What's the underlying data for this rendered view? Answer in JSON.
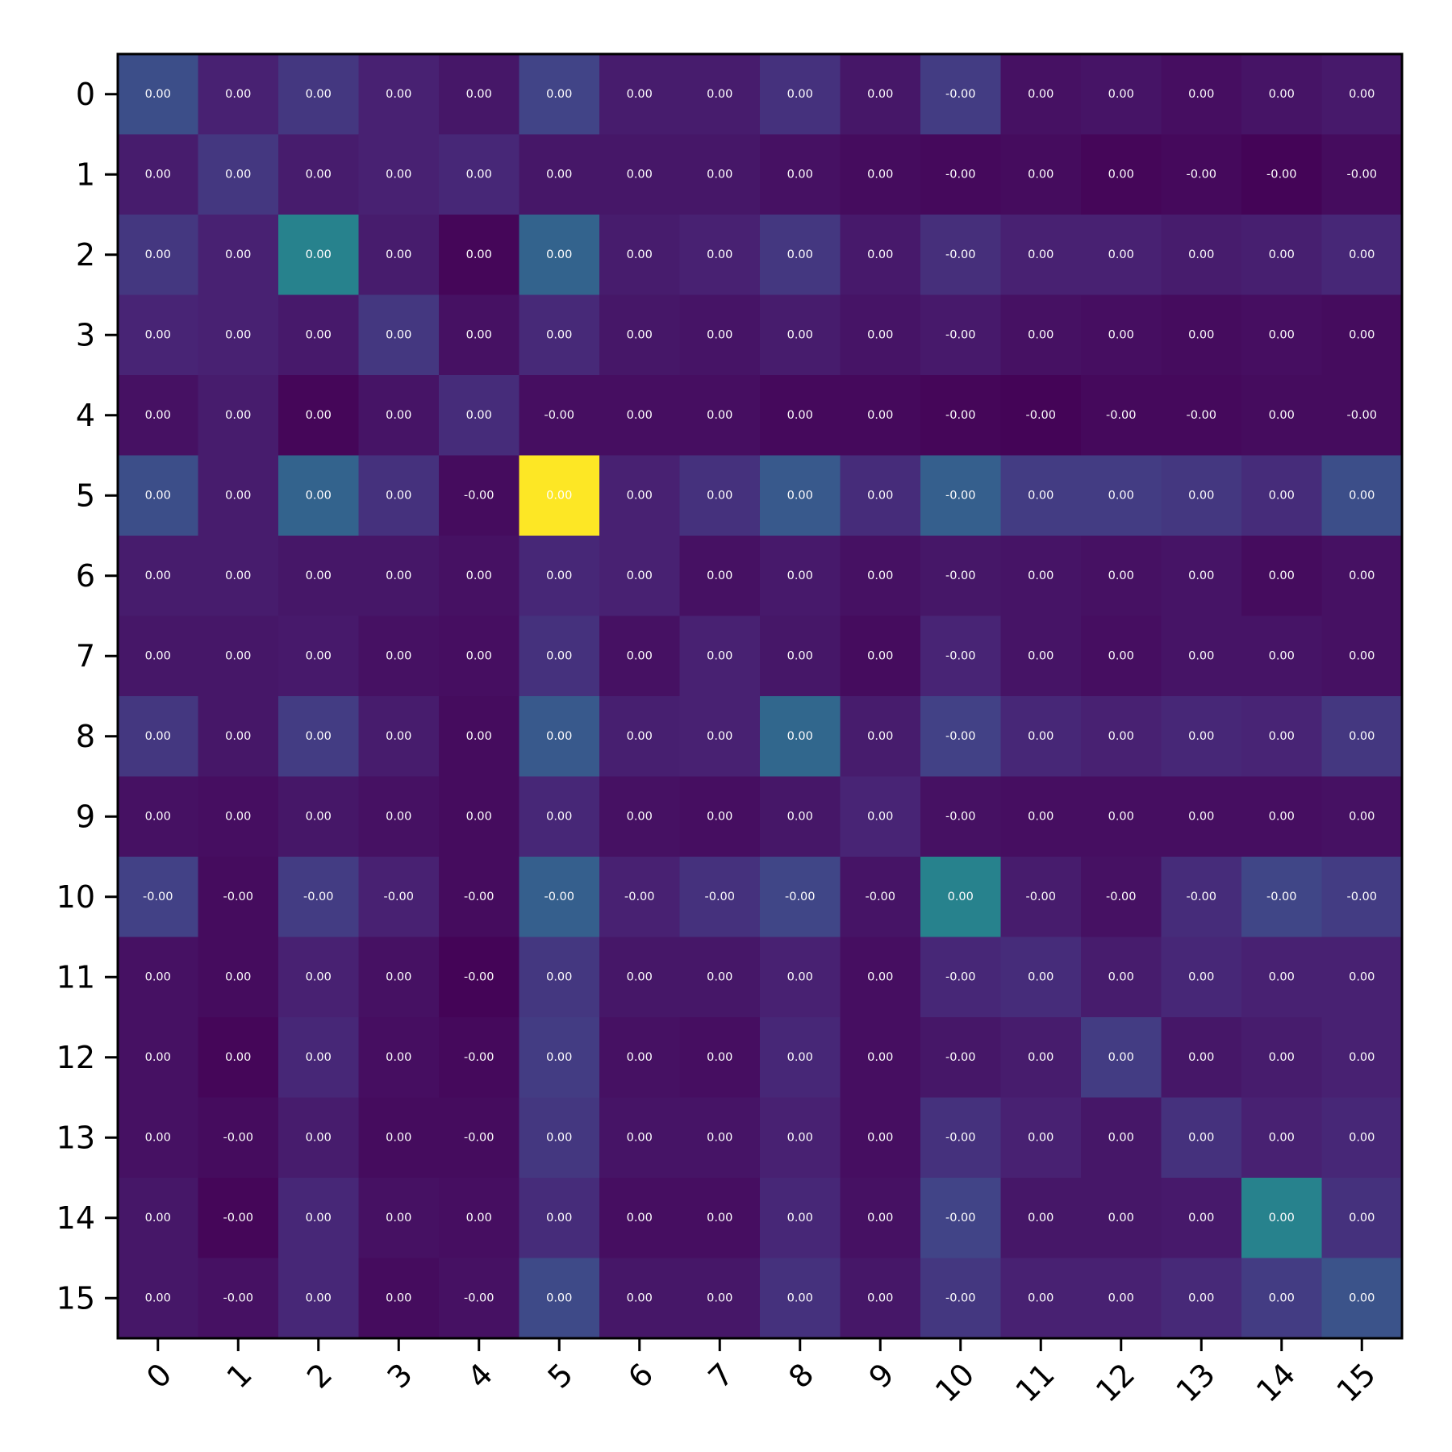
{
  "chart_data": {
    "type": "heatmap",
    "title": "",
    "xlabel": "",
    "ylabel": "",
    "colormap": "viridis",
    "x_ticks": [
      "0",
      "1",
      "2",
      "3",
      "4",
      "5",
      "6",
      "7",
      "8",
      "9",
      "10",
      "11",
      "12",
      "13",
      "14",
      "15"
    ],
    "y_ticks": [
      "0",
      "1",
      "2",
      "3",
      "4",
      "5",
      "6",
      "7",
      "8",
      "9",
      "10",
      "11",
      "12",
      "13",
      "14",
      "15"
    ],
    "x_tick_rotation_deg": 45,
    "intensity_range": [
      0,
      1
    ],
    "intensity": [
      [
        0.3,
        0.12,
        0.2,
        0.12,
        0.08,
        0.25,
        0.1,
        0.1,
        0.18,
        0.08,
        0.22,
        0.06,
        0.07,
        0.05,
        0.07,
        0.09
      ],
      [
        0.1,
        0.2,
        0.1,
        0.12,
        0.14,
        0.08,
        0.08,
        0.08,
        0.06,
        0.04,
        0.03,
        0.04,
        0.02,
        0.03,
        0.01,
        0.04
      ],
      [
        0.2,
        0.12,
        0.55,
        0.1,
        0.02,
        0.4,
        0.1,
        0.12,
        0.2,
        0.09,
        0.17,
        0.12,
        0.12,
        0.1,
        0.11,
        0.14
      ],
      [
        0.13,
        0.12,
        0.09,
        0.2,
        0.06,
        0.15,
        0.08,
        0.07,
        0.1,
        0.07,
        0.09,
        0.06,
        0.05,
        0.04,
        0.05,
        0.04
      ],
      [
        0.06,
        0.1,
        0.02,
        0.07,
        0.16,
        0.05,
        0.05,
        0.05,
        0.03,
        0.03,
        0.02,
        0.01,
        0.03,
        0.03,
        0.04,
        0.04
      ],
      [
        0.3,
        0.1,
        0.4,
        0.18,
        0.04,
        1.0,
        0.12,
        0.18,
        0.35,
        0.16,
        0.38,
        0.22,
        0.22,
        0.2,
        0.16,
        0.3
      ],
      [
        0.1,
        0.1,
        0.08,
        0.08,
        0.06,
        0.14,
        0.12,
        0.06,
        0.09,
        0.06,
        0.08,
        0.07,
        0.06,
        0.07,
        0.04,
        0.06
      ],
      [
        0.08,
        0.08,
        0.09,
        0.06,
        0.05,
        0.18,
        0.06,
        0.12,
        0.08,
        0.04,
        0.13,
        0.07,
        0.05,
        0.07,
        0.07,
        0.06
      ],
      [
        0.2,
        0.08,
        0.22,
        0.1,
        0.04,
        0.35,
        0.11,
        0.12,
        0.42,
        0.1,
        0.24,
        0.14,
        0.12,
        0.14,
        0.13,
        0.2
      ],
      [
        0.06,
        0.05,
        0.08,
        0.06,
        0.04,
        0.14,
        0.06,
        0.05,
        0.08,
        0.13,
        0.06,
        0.05,
        0.05,
        0.05,
        0.05,
        0.06
      ],
      [
        0.24,
        0.04,
        0.22,
        0.12,
        0.04,
        0.38,
        0.12,
        0.18,
        0.26,
        0.07,
        0.55,
        0.1,
        0.06,
        0.16,
        0.26,
        0.22
      ],
      [
        0.06,
        0.04,
        0.12,
        0.06,
        0.01,
        0.2,
        0.08,
        0.08,
        0.12,
        0.05,
        0.14,
        0.16,
        0.1,
        0.14,
        0.12,
        0.12
      ],
      [
        0.06,
        0.02,
        0.14,
        0.05,
        0.03,
        0.22,
        0.06,
        0.05,
        0.14,
        0.05,
        0.08,
        0.1,
        0.22,
        0.08,
        0.1,
        0.12
      ],
      [
        0.06,
        0.04,
        0.1,
        0.04,
        0.04,
        0.2,
        0.07,
        0.07,
        0.12,
        0.05,
        0.18,
        0.12,
        0.08,
        0.18,
        0.12,
        0.14
      ],
      [
        0.08,
        0.02,
        0.14,
        0.06,
        0.05,
        0.16,
        0.05,
        0.05,
        0.14,
        0.06,
        0.25,
        0.08,
        0.08,
        0.09,
        0.55,
        0.18
      ],
      [
        0.08,
        0.06,
        0.14,
        0.04,
        0.06,
        0.28,
        0.08,
        0.08,
        0.18,
        0.08,
        0.2,
        0.12,
        0.12,
        0.15,
        0.22,
        0.32
      ]
    ],
    "cell_labels": [
      [
        "0.00",
        "0.00",
        "0.00",
        "0.00",
        "0.00",
        "0.00",
        "0.00",
        "0.00",
        "0.00",
        "0.00",
        "-0.00",
        "0.00",
        "0.00",
        "0.00",
        "0.00",
        "0.00"
      ],
      [
        "0.00",
        "0.00",
        "0.00",
        "0.00",
        "0.00",
        "0.00",
        "0.00",
        "0.00",
        "0.00",
        "0.00",
        "-0.00",
        "0.00",
        "0.00",
        "-0.00",
        "-0.00",
        "-0.00"
      ],
      [
        "0.00",
        "0.00",
        "0.00",
        "0.00",
        "0.00",
        "0.00",
        "0.00",
        "0.00",
        "0.00",
        "0.00",
        "-0.00",
        "0.00",
        "0.00",
        "0.00",
        "0.00",
        "0.00"
      ],
      [
        "0.00",
        "0.00",
        "0.00",
        "0.00",
        "0.00",
        "0.00",
        "0.00",
        "0.00",
        "0.00",
        "0.00",
        "-0.00",
        "0.00",
        "0.00",
        "0.00",
        "0.00",
        "0.00"
      ],
      [
        "0.00",
        "0.00",
        "0.00",
        "0.00",
        "0.00",
        "-0.00",
        "0.00",
        "0.00",
        "0.00",
        "0.00",
        "-0.00",
        "-0.00",
        "-0.00",
        "-0.00",
        "0.00",
        "-0.00"
      ],
      [
        "0.00",
        "0.00",
        "0.00",
        "0.00",
        "-0.00",
        "0.00",
        "0.00",
        "0.00",
        "0.00",
        "0.00",
        "-0.00",
        "0.00",
        "0.00",
        "0.00",
        "0.00",
        "0.00"
      ],
      [
        "0.00",
        "0.00",
        "0.00",
        "0.00",
        "0.00",
        "0.00",
        "0.00",
        "0.00",
        "0.00",
        "0.00",
        "-0.00",
        "0.00",
        "0.00",
        "0.00",
        "0.00",
        "0.00"
      ],
      [
        "0.00",
        "0.00",
        "0.00",
        "0.00",
        "0.00",
        "0.00",
        "0.00",
        "0.00",
        "0.00",
        "0.00",
        "-0.00",
        "0.00",
        "0.00",
        "0.00",
        "0.00",
        "0.00"
      ],
      [
        "0.00",
        "0.00",
        "0.00",
        "0.00",
        "0.00",
        "0.00",
        "0.00",
        "0.00",
        "0.00",
        "0.00",
        "-0.00",
        "0.00",
        "0.00",
        "0.00",
        "0.00",
        "0.00"
      ],
      [
        "0.00",
        "0.00",
        "0.00",
        "0.00",
        "0.00",
        "0.00",
        "0.00",
        "0.00",
        "0.00",
        "0.00",
        "-0.00",
        "0.00",
        "0.00",
        "0.00",
        "0.00",
        "0.00"
      ],
      [
        "-0.00",
        "-0.00",
        "-0.00",
        "-0.00",
        "-0.00",
        "-0.00",
        "-0.00",
        "-0.00",
        "-0.00",
        "-0.00",
        "0.00",
        "-0.00",
        "-0.00",
        "-0.00",
        "-0.00",
        "-0.00"
      ],
      [
        "0.00",
        "0.00",
        "0.00",
        "0.00",
        "-0.00",
        "0.00",
        "0.00",
        "0.00",
        "0.00",
        "0.00",
        "-0.00",
        "0.00",
        "0.00",
        "0.00",
        "0.00",
        "0.00"
      ],
      [
        "0.00",
        "0.00",
        "0.00",
        "0.00",
        "-0.00",
        "0.00",
        "0.00",
        "0.00",
        "0.00",
        "0.00",
        "-0.00",
        "0.00",
        "0.00",
        "0.00",
        "0.00",
        "0.00"
      ],
      [
        "0.00",
        "-0.00",
        "0.00",
        "0.00",
        "-0.00",
        "0.00",
        "0.00",
        "0.00",
        "0.00",
        "0.00",
        "-0.00",
        "0.00",
        "0.00",
        "0.00",
        "0.00",
        "0.00"
      ],
      [
        "0.00",
        "-0.00",
        "0.00",
        "0.00",
        "0.00",
        "0.00",
        "0.00",
        "0.00",
        "0.00",
        "0.00",
        "-0.00",
        "0.00",
        "0.00",
        "0.00",
        "0.00",
        "0.00"
      ],
      [
        "0.00",
        "-0.00",
        "0.00",
        "0.00",
        "-0.00",
        "0.00",
        "0.00",
        "0.00",
        "0.00",
        "0.00",
        "-0.00",
        "0.00",
        "0.00",
        "0.00",
        "0.00",
        "0.00"
      ]
    ],
    "grid": false,
    "legend": "none"
  }
}
